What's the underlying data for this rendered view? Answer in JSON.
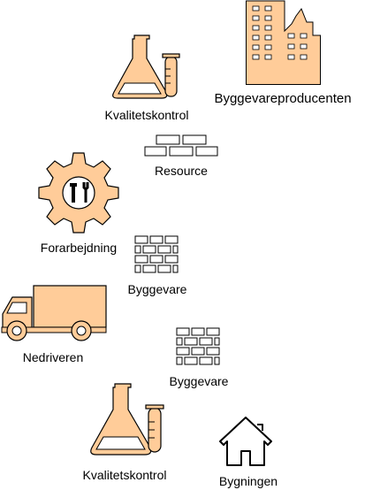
{
  "colors": {
    "fill": "#FFCC99",
    "stroke": "#000000",
    "background": "#FFFFFF"
  },
  "nodes": [
    {
      "id": "building",
      "icon": "factory-building-icon",
      "label": "Byggevareproducenten"
    },
    {
      "id": "qc-top",
      "icon": "laboratory-flask-icon",
      "label": "Kvalitetskontrol"
    },
    {
      "id": "resource",
      "icon": "brick-row-icon",
      "label": "Resource"
    },
    {
      "id": "preprocessing",
      "icon": "gear-tools-icon",
      "label": "Forarbejdning"
    },
    {
      "id": "product-1",
      "icon": "brick-wall-icon",
      "label": "Byggevare"
    },
    {
      "id": "truck",
      "icon": "delivery-truck-icon",
      "label": "Nedriveren"
    },
    {
      "id": "product-2",
      "icon": "brick-wall-icon",
      "label": "Byggevare"
    },
    {
      "id": "qc-bottom",
      "icon": "laboratory-flask-icon",
      "label": "Kvalitetskontrol"
    },
    {
      "id": "house",
      "icon": "house-icon",
      "label": "Bygningen"
    }
  ]
}
